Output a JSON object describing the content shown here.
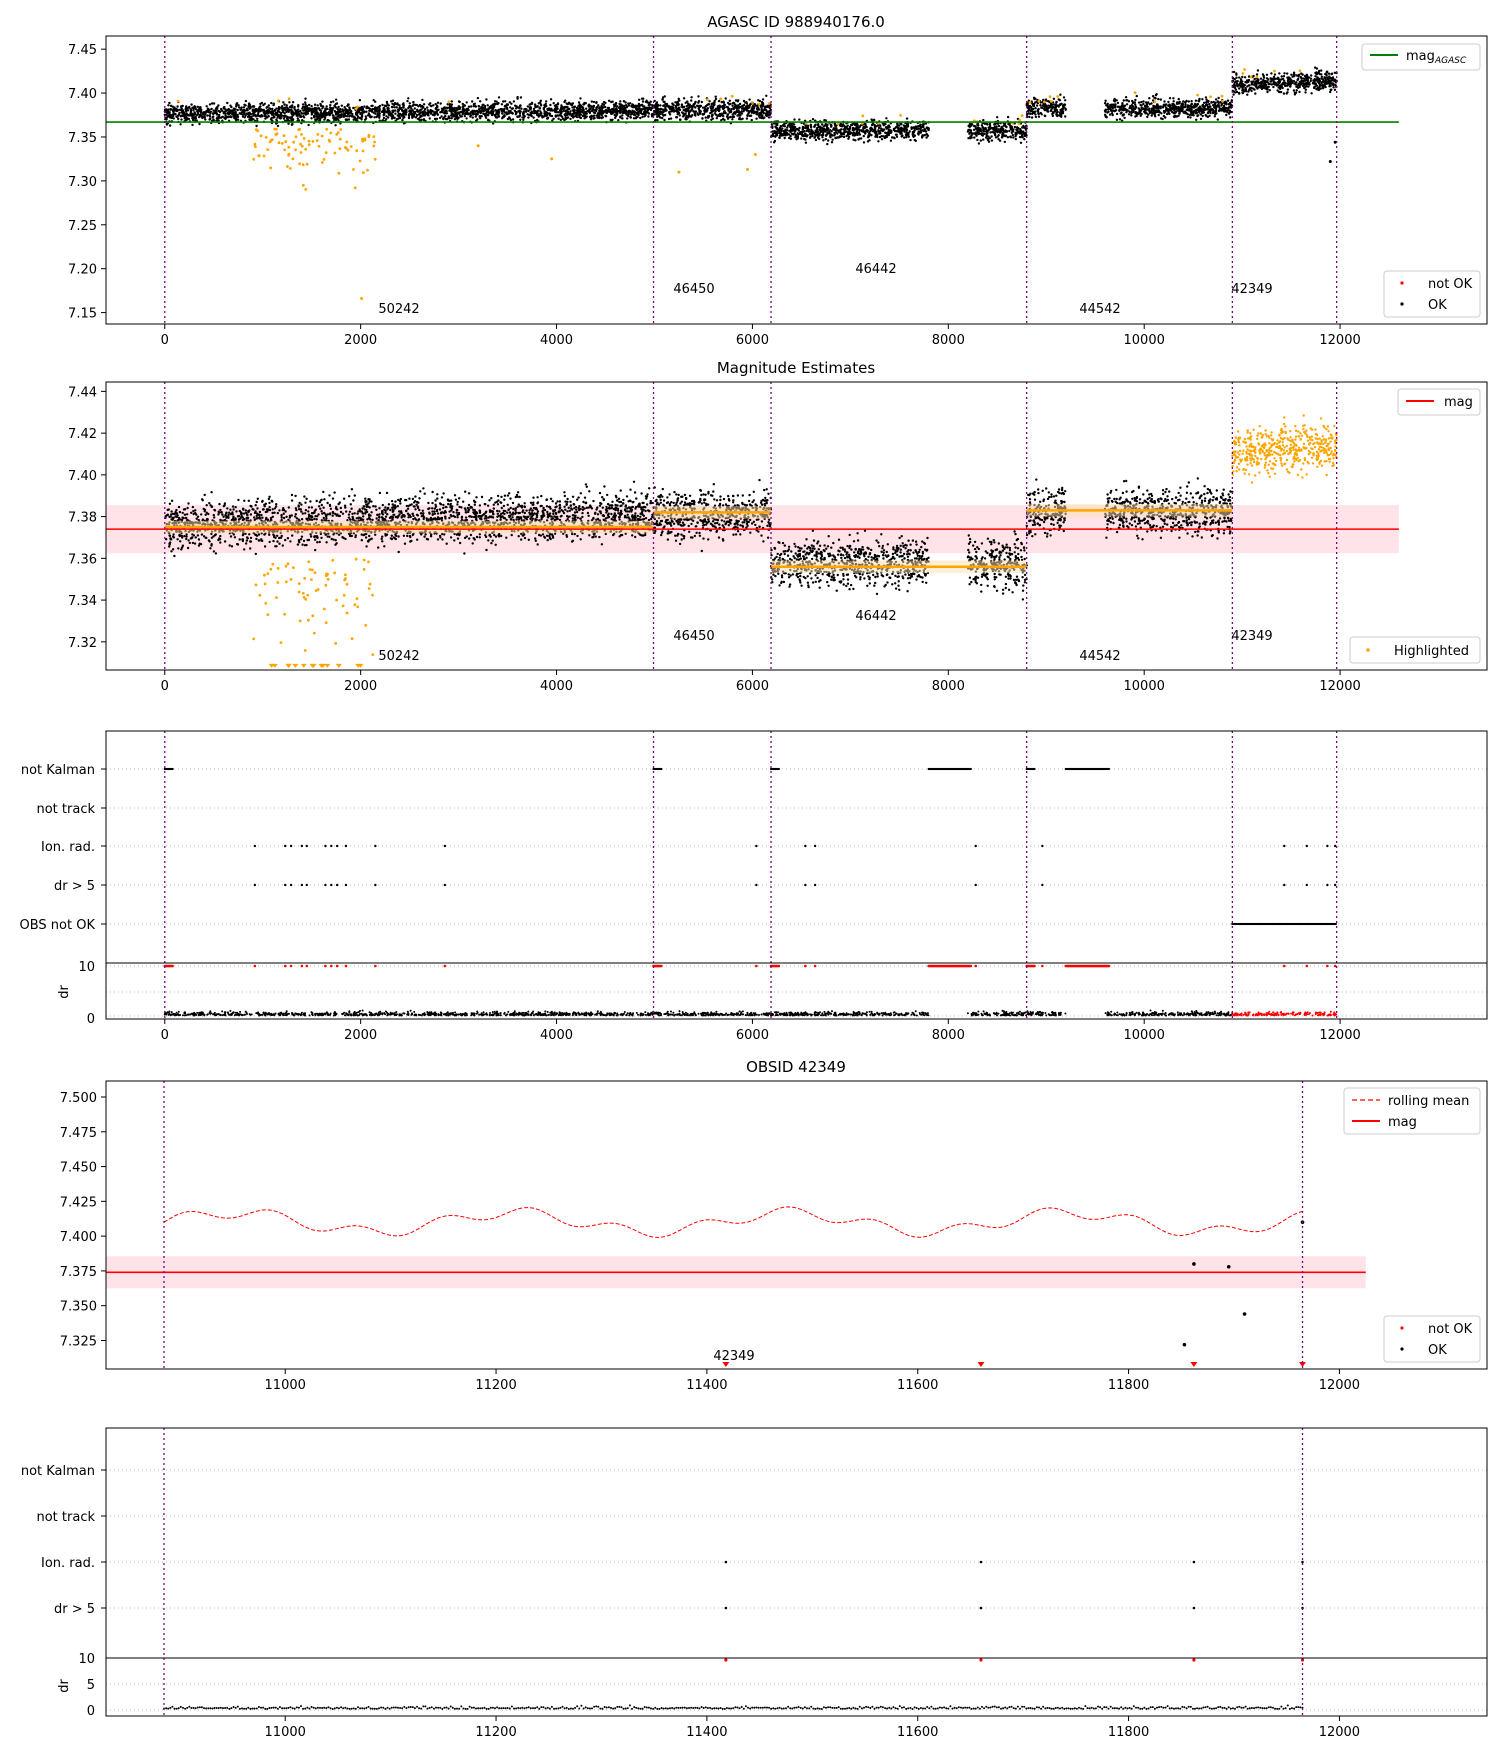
{
  "colors": {
    "ok": "#000000",
    "not_ok": "#ff0000",
    "highlight": "#ffa500",
    "agasc_line": "#008000",
    "mag_line": "#ff0000",
    "obs_vline": "#800080",
    "band": "#ffc0cb",
    "mean_band": "#ffe0b0"
  },
  "obsid_labels": [
    "50242",
    "46450",
    "46442",
    "44542",
    "42349"
  ],
  "row_labels": {
    "not_kalman": "not Kalman",
    "not_track": "not track",
    "ion_rad": "Ion. rad.",
    "dr5": "dr > 5",
    "obs_not_ok": "OBS not OK",
    "dr_axis": "dr"
  },
  "chart_data": [
    {
      "type": "scatter",
      "title": "AGASC ID 988940176.0",
      "xlabel": "",
      "ylabel": "",
      "xlim": [
        -600,
        13500
      ],
      "ylim": [
        7.137,
        7.465
      ],
      "xticks": [
        "0",
        "2000",
        "4000",
        "6000",
        "8000",
        "10000",
        "12000"
      ],
      "yticks": [
        "7.15",
        "7.20",
        "7.25",
        "7.30",
        "7.35",
        "7.40",
        "7.45"
      ],
      "legend_top": "mag",
      "legend_top_sub": "AGASC",
      "legend_bottom": [
        "not OK",
        "OK"
      ],
      "obs_boundaries": [
        0,
        4990,
        6190,
        8800,
        10900,
        11965
      ],
      "agasc_mag": 7.367,
      "segments": [
        {
          "obsid": "50242",
          "x": [
            0,
            4990
          ],
          "mag": 7.376,
          "drift": 0.005
        },
        {
          "obsid": "46450",
          "x": [
            4990,
            6190
          ],
          "mag": 7.381,
          "drift": 0
        },
        {
          "obsid": "46442",
          "x": [
            6190,
            7800
          ],
          "mag": 7.357,
          "drift": 0.002
        },
        {
          "obsid": "46442",
          "x": [
            8200,
            8800
          ],
          "mag": 7.357,
          "drift": 0
        },
        {
          "obsid": "44542",
          "x": [
            8800,
            9200
          ],
          "mag": 7.383,
          "drift": 0
        },
        {
          "obsid": "44542",
          "x": [
            9600,
            10900
          ],
          "mag": 7.383,
          "drift": 0
        },
        {
          "obsid": "42349",
          "x": [
            10900,
            11965
          ],
          "mag": 7.41,
          "drift": 0.004
        }
      ]
    },
    {
      "type": "scatter",
      "title": "Magnitude Estimates",
      "xlim": [
        -600,
        13500
      ],
      "ylim": [
        7.3065,
        7.4445
      ],
      "xticks": [
        "0",
        "2000",
        "4000",
        "6000",
        "8000",
        "10000",
        "12000"
      ],
      "yticks": [
        "7.32",
        "7.34",
        "7.36",
        "7.38",
        "7.40",
        "7.42",
        "7.44"
      ],
      "legend_top": "mag",
      "legend_bottom": [
        "Highlighted"
      ],
      "mag": 7.374,
      "mag_band": [
        7.3625,
        7.3855
      ],
      "obs_means": [
        {
          "x": [
            0,
            4990
          ],
          "mean": 7.375
        },
        {
          "x": [
            4990,
            6190
          ],
          "mean": 7.382
        },
        {
          "x": [
            6190,
            8800
          ],
          "mean": 7.356
        },
        {
          "x": [
            8800,
            10900
          ],
          "mean": 7.383
        }
      ]
    },
    {
      "type": "scatter",
      "title": "",
      "rows": [
        "not Kalman",
        "not track",
        "Ion. rad.",
        "dr > 5",
        "OBS not OK"
      ],
      "dr_ticks": [
        "0",
        "5",
        "10"
      ],
      "xticks": [
        "0",
        "2000",
        "4000",
        "6000",
        "8000",
        "10000",
        "12000"
      ],
      "not_kalman_ranges": [
        [
          0,
          80
        ],
        [
          4990,
          5070
        ],
        [
          6190,
          6270
        ],
        [
          7800,
          8230
        ],
        [
          8800,
          8880
        ],
        [
          9200,
          9640
        ]
      ],
      "ion_events": [
        920,
        1230,
        1290,
        1400,
        1450,
        1640,
        1700,
        1760,
        1850,
        2150,
        2860,
        6040,
        6540,
        6640,
        8280,
        8960,
        11430,
        11660,
        11870,
        11950
      ],
      "obs_not_ok_range": [
        10900,
        11965
      ]
    },
    {
      "type": "line",
      "title": "OBSID 42349",
      "xlim": [
        10830,
        12140
      ],
      "ylim": [
        7.3045,
        7.5115
      ],
      "xticks": [
        "11000",
        "11200",
        "11400",
        "11600",
        "11800",
        "12000"
      ],
      "yticks": [
        "7.325",
        "7.350",
        "7.375",
        "7.400",
        "7.425",
        "7.450",
        "7.475",
        "7.500"
      ],
      "legend_top": [
        "rolling mean",
        "mag"
      ],
      "legend_bottom": [
        "not OK",
        "OK"
      ],
      "obsid_label": "42349",
      "mag": 7.374,
      "mag_band": [
        7.3625,
        7.3855
      ],
      "series_mean": 7.41,
      "outliers": [
        [
          11853,
          7.322
        ],
        [
          11862,
          7.38
        ],
        [
          11895,
          7.378
        ],
        [
          11910,
          7.344
        ],
        [
          11965,
          7.41
        ]
      ],
      "not_ok_x": [
        11418,
        11660,
        11862,
        11965
      ]
    },
    {
      "type": "scatter",
      "title": "",
      "rows": [
        "not Kalman",
        "not track",
        "Ion. rad.",
        "dr > 5"
      ],
      "dr_ticks": [
        "0",
        "5",
        "10"
      ],
      "xticks": [
        "11000",
        "11200",
        "11400",
        "11600",
        "11800",
        "12000"
      ],
      "ion_events": [
        11418,
        11660,
        11862,
        11965
      ]
    }
  ]
}
